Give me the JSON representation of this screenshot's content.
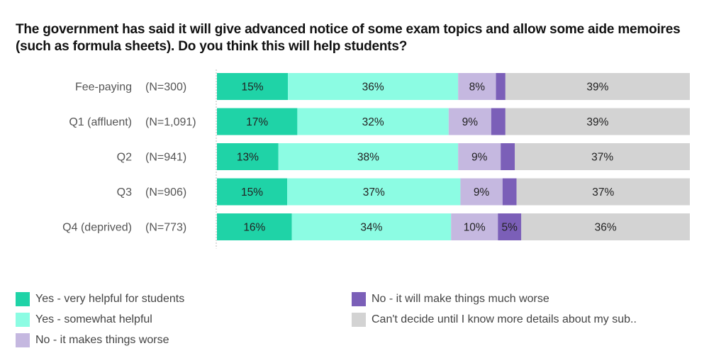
{
  "chart_data": {
    "type": "bar",
    "orientation": "horizontal",
    "stacked": true,
    "title": "The government has said it will give advanced notice of some exam topics and allow some aide memoires (such as formula sheets). Do you think this will help students?",
    "xlabel": "",
    "ylabel": "",
    "xlim": [
      0,
      100
    ],
    "grid": false,
    "legend_position": "bottom",
    "categories": [
      "Fee-paying",
      "Q1 (affluent)",
      "Q2",
      "Q3",
      "Q4 (deprived)"
    ],
    "sample_sizes": [
      "(N=300)",
      "(N=1,091)",
      "(N=941)",
      "(N=906)",
      "(N=773)"
    ],
    "series": [
      {
        "name": "Yes - very helpful for students",
        "color": "#1fd3a7",
        "values": [
          15,
          17,
          13,
          15,
          16
        ],
        "labels": [
          "15%",
          "17%",
          "13%",
          "15%",
          "16%"
        ]
      },
      {
        "name": "Yes - somewhat helpful",
        "color": "#8cfce3",
        "values": [
          36,
          32,
          38,
          37,
          34
        ],
        "labels": [
          "36%",
          "32%",
          "38%",
          "37%",
          "34%"
        ]
      },
      {
        "name": "No - it makes things worse",
        "color": "#c5b8e0",
        "values": [
          8,
          9,
          9,
          9,
          10
        ],
        "labels": [
          "8%",
          "9%",
          "9%",
          "9%",
          "10%"
        ]
      },
      {
        "name": "No - it will make things much worse",
        "color": "#7b5fb8",
        "values": [
          2,
          3,
          3,
          3,
          5
        ],
        "labels": [
          "",
          "",
          "",
          "",
          "5%"
        ]
      },
      {
        "name": "Can't decide until I know more details about my sub..",
        "color": "#d3d3d3",
        "values": [
          39,
          39,
          37,
          37,
          36
        ],
        "labels": [
          "39%",
          "39%",
          "37%",
          "37%",
          "36%"
        ]
      }
    ]
  }
}
